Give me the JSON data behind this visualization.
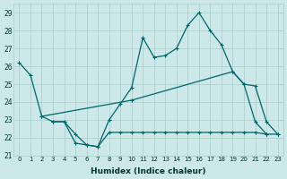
{
  "xlabel": "Humidex (Indice chaleur)",
  "xlim": [
    -0.5,
    23.5
  ],
  "ylim": [
    21,
    29.5
  ],
  "yticks": [
    21,
    22,
    23,
    24,
    25,
    26,
    27,
    28,
    29
  ],
  "xticks": [
    0,
    1,
    2,
    3,
    4,
    5,
    6,
    7,
    8,
    9,
    10,
    11,
    12,
    13,
    14,
    15,
    16,
    17,
    18,
    19,
    20,
    21,
    22,
    23
  ],
  "bg_color": "#cce8e8",
  "line_color": "#006666",
  "grid_color": "#aacccc",
  "line1_x": [
    0,
    1,
    2,
    3,
    4,
    5,
    6,
    7,
    8,
    9,
    10,
    11,
    12,
    13,
    14,
    15,
    16,
    17,
    18,
    19,
    20,
    21,
    22
  ],
  "line1_y": [
    26.2,
    25.5,
    23.2,
    22.9,
    22.9,
    21.7,
    21.6,
    21.5,
    23.0,
    23.9,
    24.8,
    27.6,
    26.5,
    26.6,
    27.0,
    28.3,
    29.0,
    28.0,
    27.2,
    25.7,
    25.0,
    22.9,
    22.2
  ],
  "line2_x": [
    2,
    10,
    19,
    20,
    21,
    22,
    23
  ],
  "line2_y": [
    23.2,
    24.1,
    25.7,
    25.0,
    24.9,
    22.9,
    22.2
  ],
  "line3_x": [
    3,
    4,
    5,
    6,
    7,
    8,
    9,
    10,
    11,
    12,
    13,
    14,
    15,
    16,
    17,
    18,
    19,
    20,
    21,
    22,
    23
  ],
  "line3_y": [
    22.9,
    22.9,
    22.2,
    21.6,
    21.5,
    22.3,
    22.3,
    22.3,
    22.3,
    22.3,
    22.3,
    22.3,
    22.3,
    22.3,
    22.3,
    22.3,
    22.3,
    22.3,
    22.3,
    22.2,
    22.2
  ]
}
